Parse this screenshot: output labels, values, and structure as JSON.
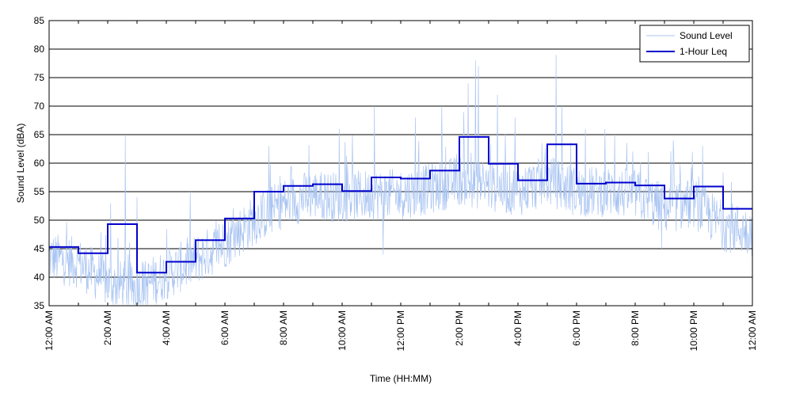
{
  "chart_data": {
    "type": "line",
    "title": "",
    "xlabel": "Time (HH:MM)",
    "ylabel": "Sound Level (dBA)",
    "ylim": [
      35,
      85
    ],
    "xlim_hours": [
      0,
      24
    ],
    "y_ticks": [
      35,
      40,
      45,
      50,
      55,
      60,
      65,
      70,
      75,
      80,
      85
    ],
    "x_ticks": [
      {
        "hour": 0,
        "label": "12:00 AM"
      },
      {
        "hour": 2,
        "label": "2:00 AM"
      },
      {
        "hour": 4,
        "label": "4:00 AM"
      },
      {
        "hour": 6,
        "label": "6:00 AM"
      },
      {
        "hour": 8,
        "label": "8:00 AM"
      },
      {
        "hour": 10,
        "label": "10:00 AM"
      },
      {
        "hour": 12,
        "label": "12:00 PM"
      },
      {
        "hour": 14,
        "label": "2:00 PM"
      },
      {
        "hour": 16,
        "label": "4:00 PM"
      },
      {
        "hour": 18,
        "label": "6:00 PM"
      },
      {
        "hour": 20,
        "label": "8:00 PM"
      },
      {
        "hour": 22,
        "label": "10:00 PM"
      },
      {
        "hour": 24,
        "label": "12:00 AM"
      }
    ],
    "grid": "horizontal",
    "legend_position": "top-right",
    "series": [
      {
        "name": "Sound Level",
        "color": "#a9c4f2",
        "style": "thin-noisy-line",
        "base_hourly": [
          43.5,
          42.5,
          39,
          38,
          40.5,
          43,
          46,
          50,
          53,
          54.5,
          54,
          54.5,
          54.5,
          55.5,
          57,
          56,
          55,
          57,
          55,
          55,
          54.5,
          52,
          53,
          49,
          48
        ],
        "spikes": [
          {
            "hour": 2.6,
            "value": 65
          },
          {
            "hour": 3.0,
            "value": 54
          },
          {
            "hour": 2.1,
            "value": 53
          },
          {
            "hour": 11.1,
            "value": 70
          },
          {
            "hour": 12.5,
            "value": 68
          },
          {
            "hour": 13.4,
            "value": 70
          },
          {
            "hour": 14.3,
            "value": 74
          },
          {
            "hour": 14.55,
            "value": 78
          },
          {
            "hour": 14.65,
            "value": 77
          },
          {
            "hour": 15.3,
            "value": 72
          },
          {
            "hour": 17.3,
            "value": 79
          },
          {
            "hour": 17.5,
            "value": 70
          },
          {
            "hour": 15.9,
            "value": 68
          },
          {
            "hour": 9.9,
            "value": 66
          },
          {
            "hour": 18.3,
            "value": 66
          },
          {
            "hour": 19.3,
            "value": 65
          },
          {
            "hour": 21.3,
            "value": 64
          },
          {
            "hour": 22.3,
            "value": 63
          },
          {
            "hour": 7.5,
            "value": 63
          },
          {
            "hour": 11.4,
            "value": 44
          },
          {
            "hour": 20.9,
            "value": 45
          }
        ]
      },
      {
        "name": "1-Hour Leq",
        "color": "#0000cc",
        "style": "step",
        "hours": [
          0,
          1,
          2,
          3,
          4,
          5,
          6,
          7,
          8,
          9,
          10,
          11,
          12,
          13,
          14,
          15,
          16,
          17,
          18,
          19,
          20,
          21,
          22,
          23
        ],
        "values": [
          45.3,
          44.2,
          49.3,
          40.8,
          42.7,
          46.5,
          50.3,
          55.0,
          56.0,
          56.3,
          55.1,
          57.5,
          57.3,
          58.7,
          64.6,
          59.9,
          57.0,
          63.3,
          56.4,
          56.6,
          56.1,
          53.8,
          55.9,
          52.0
        ]
      }
    ]
  }
}
